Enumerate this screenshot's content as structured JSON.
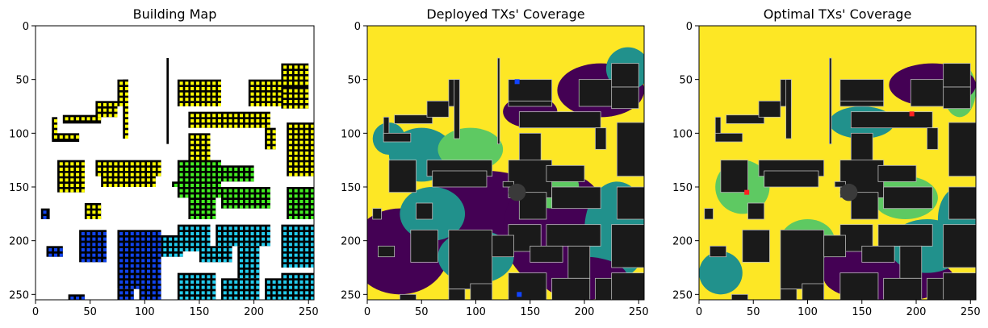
{
  "chart_data": [
    {
      "type": "heatmap",
      "title": "Building Map",
      "xlim": [
        0,
        255
      ],
      "ylim": [
        255,
        0
      ],
      "x_ticks": [
        0,
        50,
        100,
        150,
        200,
        250
      ],
      "y_ticks": [
        0,
        50,
        100,
        150,
        200,
        250
      ],
      "grid": false,
      "colors": {
        "background": "#ffffff",
        "building": "#000000",
        "marker_yellow": "#ffff00",
        "marker_green": "#44ee22",
        "marker_cyan": "#22ccee",
        "marker_blue": "#1144ee"
      }
    },
    {
      "type": "heatmap",
      "title": "Deployed TXs' Coverage",
      "xlim": [
        0,
        255
      ],
      "ylim": [
        255,
        0
      ],
      "x_ticks": [
        0,
        50,
        100,
        150,
        200,
        250
      ],
      "y_ticks": [
        0,
        50,
        100,
        150,
        200,
        250
      ],
      "grid": false,
      "colors": {
        "high": "#fde725",
        "mid_high": "#5ec962",
        "mid": "#21918c",
        "low": "#440154",
        "building": "#1a1a1a",
        "tx": "#1144ff"
      }
    },
    {
      "type": "heatmap",
      "title": "Optimal TXs' Coverage",
      "xlim": [
        0,
        255
      ],
      "ylim": [
        255,
        0
      ],
      "x_ticks": [
        0,
        50,
        100,
        150,
        200,
        250
      ],
      "y_ticks": [
        0,
        50,
        100,
        150,
        200,
        250
      ],
      "grid": false,
      "colors": {
        "high": "#fde725",
        "mid_high": "#5ec962",
        "mid": "#21918c",
        "low": "#440154",
        "building": "#1a1a1a",
        "tx": "#ff2222"
      }
    }
  ]
}
